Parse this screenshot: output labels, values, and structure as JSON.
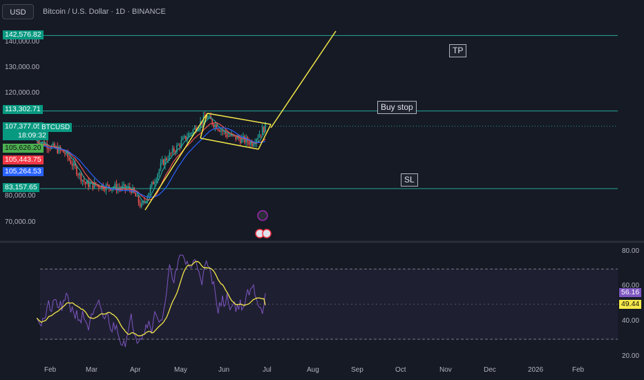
{
  "header": {
    "currency_button": "USD",
    "title": "Bitcoin / U.S. Dollar · 1D · BINANCE"
  },
  "price_axis": {
    "ticks": [
      {
        "value": 140000,
        "label": "140,000.00"
      },
      {
        "value": 130000,
        "label": "130,000.00"
      },
      {
        "value": 120000,
        "label": "120,000.00"
      },
      {
        "value": 80000,
        "label": "80,000.00"
      },
      {
        "value": 70000,
        "label": "70,000.00"
      }
    ]
  },
  "price_labels": {
    "tp_level": {
      "value": 142576.82,
      "label": "142,576.82"
    },
    "buy_level": {
      "value": 113302.71,
      "label": "113,302.71"
    },
    "last_price": {
      "value": 107377.05,
      "label": "107,377.05"
    },
    "countdown": "18:09:32",
    "ema_1": {
      "value": 105626.2,
      "label": "105,626.20"
    },
    "ema_2": {
      "value": 105443.75,
      "label": "105,443.75"
    },
    "ema_3": {
      "value": 105264.53,
      "label": "105,264.53"
    },
    "sl_level": {
      "value": 83157.65,
      "label": "83,157.65"
    }
  },
  "symbol_label": "BTCUSD",
  "annotations": {
    "tp": "TP",
    "buy_stop": "Buy stop",
    "sl": "SL"
  },
  "rsi": {
    "ticks": [
      "80.00",
      "60.00",
      "40.00",
      "20.00"
    ],
    "rsi_value": "56.16",
    "ma_value": "49.44"
  },
  "time_axis": {
    "labels": [
      "Feb",
      "Mar",
      "Apr",
      "May",
      "Jun",
      "Jul",
      "Aug",
      "Sep",
      "Oct",
      "Nov",
      "Dec",
      "2026",
      "Feb"
    ]
  },
  "colors": {
    "background": "#161a25",
    "up": "#26a69a",
    "down": "#ef5350",
    "pattern": "#f5e94a",
    "level_line": "#26a69a",
    "rsi_line": "#7e57c2",
    "rsi_ma": "#f5e94a",
    "ema_red": "#ef5350",
    "ema_blue": "#2962ff",
    "ema_green": "#26a69a"
  },
  "chart_data": {
    "type": "candlestick",
    "symbol": "BTCUSD",
    "timeframe": "1D",
    "ohlc_approx": [
      {
        "date": "2025-01-27",
        "close": 102000
      },
      {
        "date": "2025-02-15",
        "close": 97000
      },
      {
        "date": "2025-03-01",
        "close": 85000
      },
      {
        "date": "2025-03-15",
        "close": 84000
      },
      {
        "date": "2025-04-01",
        "close": 83000
      },
      {
        "date": "2025-04-08",
        "close": 76000
      },
      {
        "date": "2025-04-22",
        "close": 93000
      },
      {
        "date": "2025-05-08",
        "close": 103000
      },
      {
        "date": "2025-05-22",
        "close": 111000
      },
      {
        "date": "2025-06-05",
        "close": 104000
      },
      {
        "date": "2025-06-22",
        "close": 101000
      },
      {
        "date": "2025-07-01",
        "close": 107377
      }
    ],
    "levels": {
      "tp": 142576.82,
      "buy_stop": 113302.71,
      "sl": 83157.65
    },
    "rsi": {
      "last": 56.16,
      "ma_last": 49.44,
      "upper_band": 70,
      "lower_band": 30
    }
  }
}
